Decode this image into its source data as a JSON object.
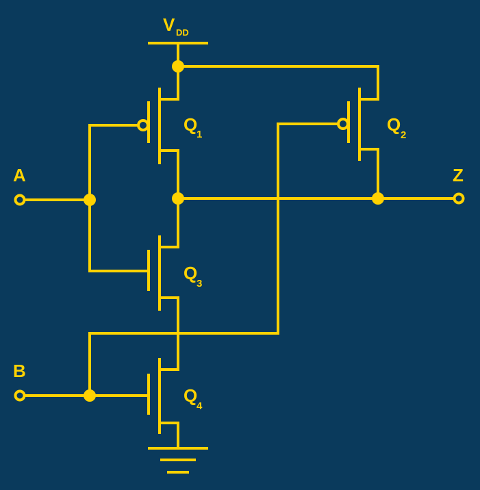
{
  "colors": {
    "background": "#0a3a5c",
    "wire": "#ffd200"
  },
  "labels": {
    "supply_main": "V",
    "supply_sub": "DD",
    "input_a": "A",
    "input_b": "B",
    "output_z": "Z"
  },
  "transistors": {
    "q1": {
      "main": "Q",
      "sub": "1"
    },
    "q2": {
      "main": "Q",
      "sub": "2"
    },
    "q3": {
      "main": "Q",
      "sub": "3"
    },
    "q4": {
      "main": "Q",
      "sub": "4"
    }
  }
}
